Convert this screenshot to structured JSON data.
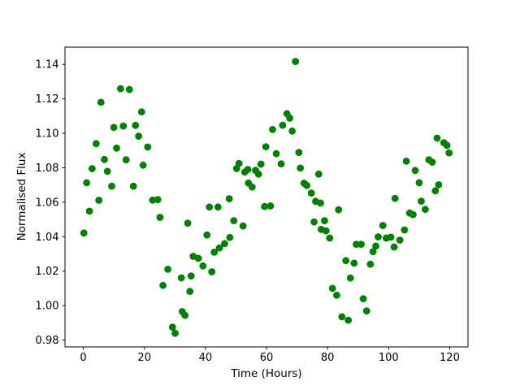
{
  "figure": {
    "background": "#ffffff",
    "axis_color": "#000000",
    "tick_label_color": "#000000"
  },
  "chart_data": {
    "type": "scatter",
    "title": "",
    "xlabel": "Time (Hours)",
    "ylabel": "Normalised Flux",
    "xlim": [
      -6,
      126
    ],
    "ylim": [
      0.976,
      1.15
    ],
    "xticks": [
      0,
      20,
      40,
      60,
      80,
      100,
      120
    ],
    "yticks": [
      0.98,
      1.0,
      1.02,
      1.04,
      1.06,
      1.08,
      1.1,
      1.12,
      1.14
    ],
    "grid": false,
    "legend": null,
    "series": [
      {
        "name": "normalised-flux-points",
        "color": "#008000",
        "marker": "circle",
        "marker_radius_px": 4.4,
        "x": [
          0.2,
          1.1,
          2.0,
          2.9,
          4.2,
          5.1,
          5.8,
          6.9,
          7.9,
          9.3,
          10.0,
          10.9,
          12.2,
          13.1,
          14.0,
          15.1,
          16.4,
          17.1,
          18.1,
          19.1,
          19.6,
          21.1,
          22.7,
          24.4,
          25.1,
          26.1,
          27.7,
          29.2,
          30.1,
          32.1,
          32.4,
          33.3,
          34.2,
          34.9,
          35.3,
          36.0,
          37.7,
          39.2,
          40.5,
          41.3,
          42.1,
          42.9,
          44.1,
          44.6,
          46.3,
          47.8,
          48.0,
          49.3,
          50.2,
          51.0,
          52.3,
          52.9,
          53.9,
          54.1,
          55.3,
          56.4,
          57.4,
          58.2,
          59.4,
          59.8,
          61.3,
          62.0,
          63.2,
          64.8,
          65.3,
          66.7,
          67.6,
          68.4,
          69.5,
          70.6,
          71.1,
          72.3,
          73.2,
          74.7,
          75.6,
          76.1,
          77.1,
          77.7,
          77.9,
          79.0,
          79.5,
          80.7,
          81.6,
          83.0,
          83.6,
          84.7,
          86.0,
          86.8,
          87.5,
          88.7,
          89.4,
          91.0,
          91.7,
          92.8,
          94.0,
          94.9,
          95.8,
          96.6,
          98.1,
          99.2,
          100.7,
          101.8,
          102.1,
          103.7,
          105.2,
          105.8,
          106.9,
          108.0,
          108.7,
          110.0,
          110.7,
          112.0,
          113.2,
          114.3,
          115.3,
          115.9,
          116.4,
          118.1,
          119.1,
          119.8
        ],
        "y": [
          1.0421,
          1.0713,
          1.0548,
          1.0795,
          1.094,
          1.0611,
          1.118,
          1.0848,
          1.0779,
          1.0693,
          1.1034,
          1.0914,
          1.1259,
          1.1042,
          1.0846,
          1.1254,
          1.0693,
          1.1046,
          1.0983,
          1.1124,
          1.0815,
          1.092,
          1.0612,
          1.0615,
          1.0512,
          1.0117,
          1.0211,
          0.9875,
          0.9839,
          1.0161,
          0.9965,
          0.9943,
          1.0478,
          1.0082,
          1.0172,
          1.0286,
          1.0274,
          1.023,
          1.041,
          1.0572,
          1.0196,
          1.031,
          1.0572,
          1.0335,
          1.036,
          1.062,
          1.0395,
          1.0493,
          1.0795,
          1.0825,
          1.0462,
          1.0775,
          1.079,
          1.0711,
          1.0688,
          1.0785,
          1.0763,
          1.0821,
          1.0575,
          1.0922,
          1.0578,
          1.1022,
          1.0882,
          1.0823,
          1.1047,
          1.1114,
          1.1088,
          1.1013,
          1.1417,
          1.0889,
          1.0798,
          1.071,
          1.0697,
          1.0653,
          1.0485,
          1.0605,
          1.0763,
          1.0595,
          1.0442,
          1.0493,
          1.0434,
          1.0392,
          1.01,
          1.006,
          1.0556,
          0.9935,
          1.0261,
          0.9915,
          1.016,
          1.0246,
          1.0356,
          1.0356,
          1.004,
          0.9969,
          1.024,
          1.0313,
          1.0345,
          1.0399,
          1.0465,
          1.0392,
          1.0397,
          1.034,
          1.0622,
          1.038,
          1.0439,
          1.0838,
          1.0537,
          1.0528,
          1.0784,
          1.0713,
          1.0606,
          1.0559,
          1.0846,
          1.0833,
          1.0666,
          1.0972,
          1.0701,
          1.0945,
          1.093,
          1.0886
        ]
      }
    ]
  }
}
